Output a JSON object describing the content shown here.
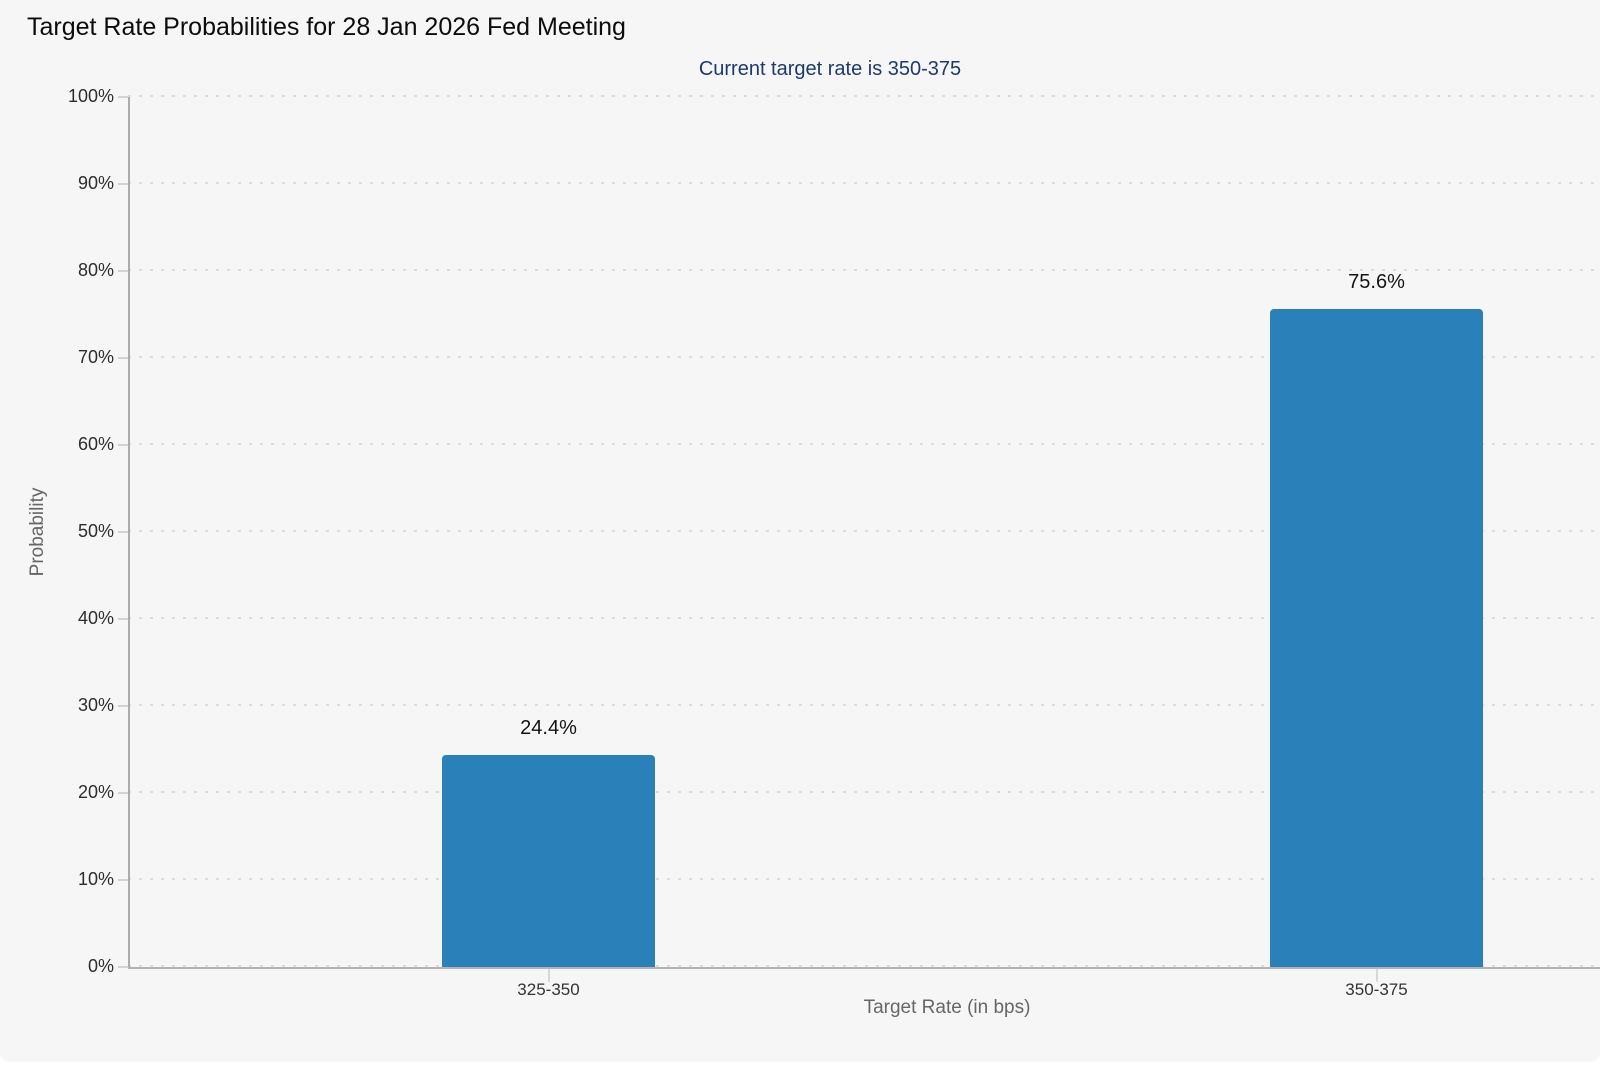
{
  "chart_data": {
    "type": "bar",
    "title": "Target Rate Probabilities for 28 Jan 2026 Fed Meeting",
    "subtitle": "Current target rate is 350-375",
    "xlabel": "Target Rate (in bps)",
    "ylabel": "Probability",
    "categories": [
      "325-350",
      "350-375"
    ],
    "values": [
      24.4,
      75.6
    ],
    "value_labels": [
      "24.4%",
      "75.6%"
    ],
    "ylim": [
      0,
      100
    ],
    "ytick_step": 10,
    "ytick_labels": [
      "0%",
      "10%",
      "20%",
      "30%",
      "40%",
      "50%",
      "60%",
      "70%",
      "80%",
      "90%",
      "100%"
    ],
    "grid": "horizontal-dotted",
    "legend": "none",
    "colors": {
      "bar": "#2a80b9",
      "subtitle_text": "#1e3a6c",
      "title_text": "#0c0c0c",
      "tick_text": "#2d2d2d",
      "axis_label_text": "#666666",
      "gridline": "#dcdcdc",
      "axis_line": "#ababab",
      "background": "#f6f6f6"
    }
  }
}
